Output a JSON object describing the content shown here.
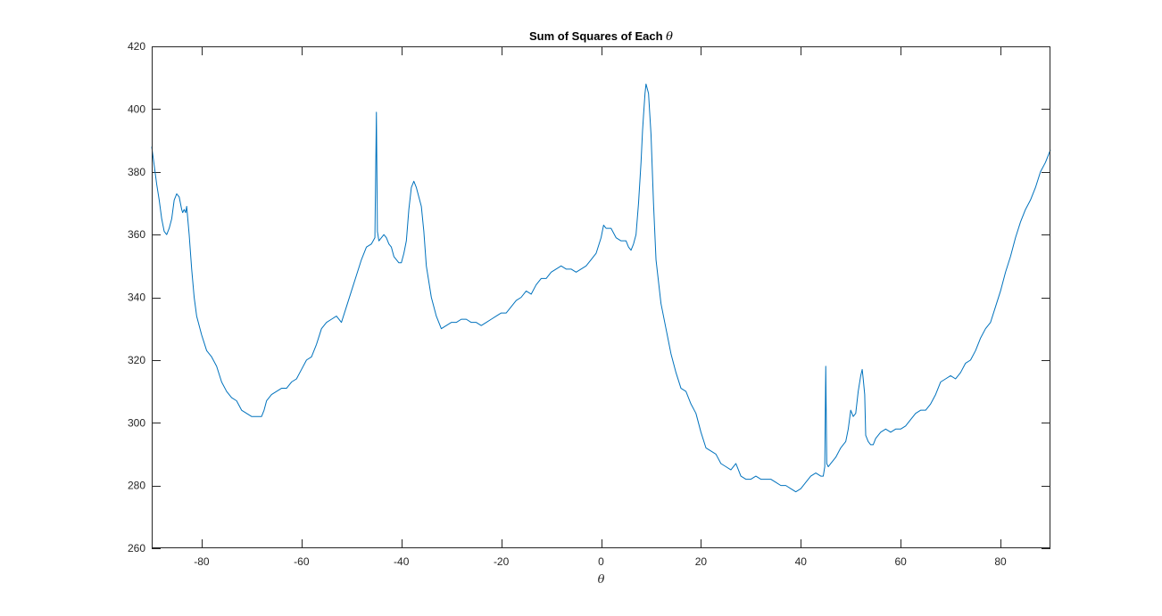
{
  "chart_data": {
    "type": "line",
    "title": "Sum of Squares of Each θ",
    "title_prefix": "Sum of Squares of Each",
    "title_symbol": "θ",
    "xlabel": "θ",
    "ylabel": "",
    "xlim": [
      -90,
      90
    ],
    "ylim": [
      260,
      420
    ],
    "xticks": [
      -80,
      -60,
      -40,
      -20,
      0,
      20,
      40,
      60,
      80
    ],
    "yticks": [
      260,
      280,
      300,
      320,
      340,
      360,
      380,
      400,
      420
    ],
    "grid": false,
    "legend": "none",
    "line_color": "#0072BD",
    "axis_color": "#262626",
    "series": [
      {
        "x": [
          -90,
          -89.5,
          -89,
          -88.5,
          -88,
          -87.5,
          -87,
          -86.5,
          -86,
          -85.5,
          -85,
          -84.5,
          -84,
          -83.8,
          -83.5,
          -83.2,
          -83,
          -82.5,
          -82,
          -81.5,
          -81,
          -80,
          -79,
          -78,
          -77,
          -76,
          -75,
          -74,
          -73,
          -72,
          -71,
          -70,
          -69,
          -68.5,
          -68,
          -67.5,
          -67,
          -66,
          -65,
          -64,
          -63,
          -62,
          -61,
          -60,
          -59,
          -58,
          -57,
          -56,
          -55,
          -54,
          -53,
          -52,
          -51,
          -50,
          -49,
          -48,
          -47,
          -46,
          -45.3,
          -45,
          -44.8,
          -44.5,
          -44,
          -43.5,
          -43,
          -42.5,
          -42,
          -41.5,
          -41,
          -40.5,
          -40,
          -39.5,
          -39,
          -38.5,
          -38,
          -37.5,
          -37,
          -36.5,
          -36,
          -35.5,
          -35,
          -34,
          -33,
          -32,
          -31,
          -30,
          -29,
          -28,
          -27,
          -26,
          -25,
          -24,
          -23,
          -22,
          -21,
          -20,
          -19,
          -18,
          -17,
          -16,
          -15,
          -14,
          -13,
          -12,
          -11,
          -10,
          -9,
          -8,
          -7,
          -6,
          -5,
          -4,
          -3,
          -2,
          -1,
          0,
          0.5,
          1,
          2,
          3,
          4,
          5,
          5.5,
          6,
          6.5,
          7,
          7.5,
          8,
          8.3,
          8.5,
          8.8,
          9,
          9.5,
          10,
          10.5,
          11,
          12,
          13,
          14,
          15,
          16,
          17,
          18,
          19,
          20,
          21,
          22,
          23,
          24,
          25,
          26,
          27,
          28,
          29,
          30,
          31,
          32,
          33,
          34,
          35,
          36,
          37,
          38,
          39,
          40,
          41,
          42,
          43,
          44,
          44.5,
          44.8,
          45,
          45.2,
          45.5,
          46,
          47,
          48,
          49,
          49.5,
          50,
          50.5,
          51,
          51.5,
          52,
          52.3,
          52.5,
          52.8,
          53,
          53.5,
          54,
          54.5,
          55,
          56,
          57,
          58,
          59,
          60,
          61,
          62,
          63,
          64,
          65,
          66,
          67,
          68,
          69,
          70,
          71,
          72,
          73,
          74,
          75,
          76,
          77,
          78,
          79,
          80,
          81,
          82,
          83,
          84,
          85,
          86,
          87,
          88,
          89,
          90
        ],
        "y": [
          388,
          382,
          376,
          371,
          365,
          361,
          360,
          362,
          365,
          371,
          373,
          372,
          368,
          367,
          368,
          367,
          369,
          360,
          349,
          340,
          334,
          328,
          323,
          321,
          318,
          313,
          310,
          308,
          307,
          304,
          303,
          302,
          302,
          302,
          302,
          304,
          307,
          309,
          310,
          311,
          311,
          313,
          314,
          317,
          320,
          321,
          325,
          330,
          332,
          333,
          334,
          332,
          337,
          342,
          347,
          352,
          356,
          357,
          359,
          399,
          361,
          358,
          359,
          360,
          359,
          357,
          356,
          353,
          352,
          351,
          351,
          354,
          358,
          368,
          375,
          377,
          375,
          372,
          369,
          361,
          350,
          340,
          334,
          330,
          331,
          332,
          332,
          333,
          333,
          332,
          332,
          331,
          332,
          333,
          334,
          335,
          335,
          337,
          339,
          340,
          342,
          341,
          344,
          346,
          346,
          348,
          349,
          350,
          349,
          349,
          348,
          349,
          350,
          352,
          354,
          359,
          363,
          362,
          362,
          359,
          358,
          358,
          356,
          355,
          357,
          360,
          370,
          383,
          393,
          398,
          405,
          408,
          405,
          392,
          370,
          352,
          338,
          330,
          322,
          316,
          311,
          310,
          306,
          303,
          297,
          292,
          291,
          290,
          287,
          286,
          285,
          287,
          283,
          282,
          282,
          283,
          282,
          282,
          282,
          281,
          280,
          280,
          279,
          278,
          279,
          281,
          283,
          284,
          283,
          283,
          286,
          318,
          287,
          286,
          287,
          289,
          292,
          294,
          298,
          304,
          302,
          303,
          310,
          315,
          317,
          314,
          309,
          296,
          294,
          293,
          293,
          295,
          297,
          298,
          297,
          298,
          298,
          299,
          301,
          303,
          304,
          304,
          306,
          309,
          313,
          314,
          315,
          314,
          316,
          319,
          320,
          323,
          327,
          330,
          332,
          337,
          342,
          348,
          353,
          359,
          364,
          368,
          371,
          375,
          380,
          383,
          387
        ]
      }
    ]
  }
}
